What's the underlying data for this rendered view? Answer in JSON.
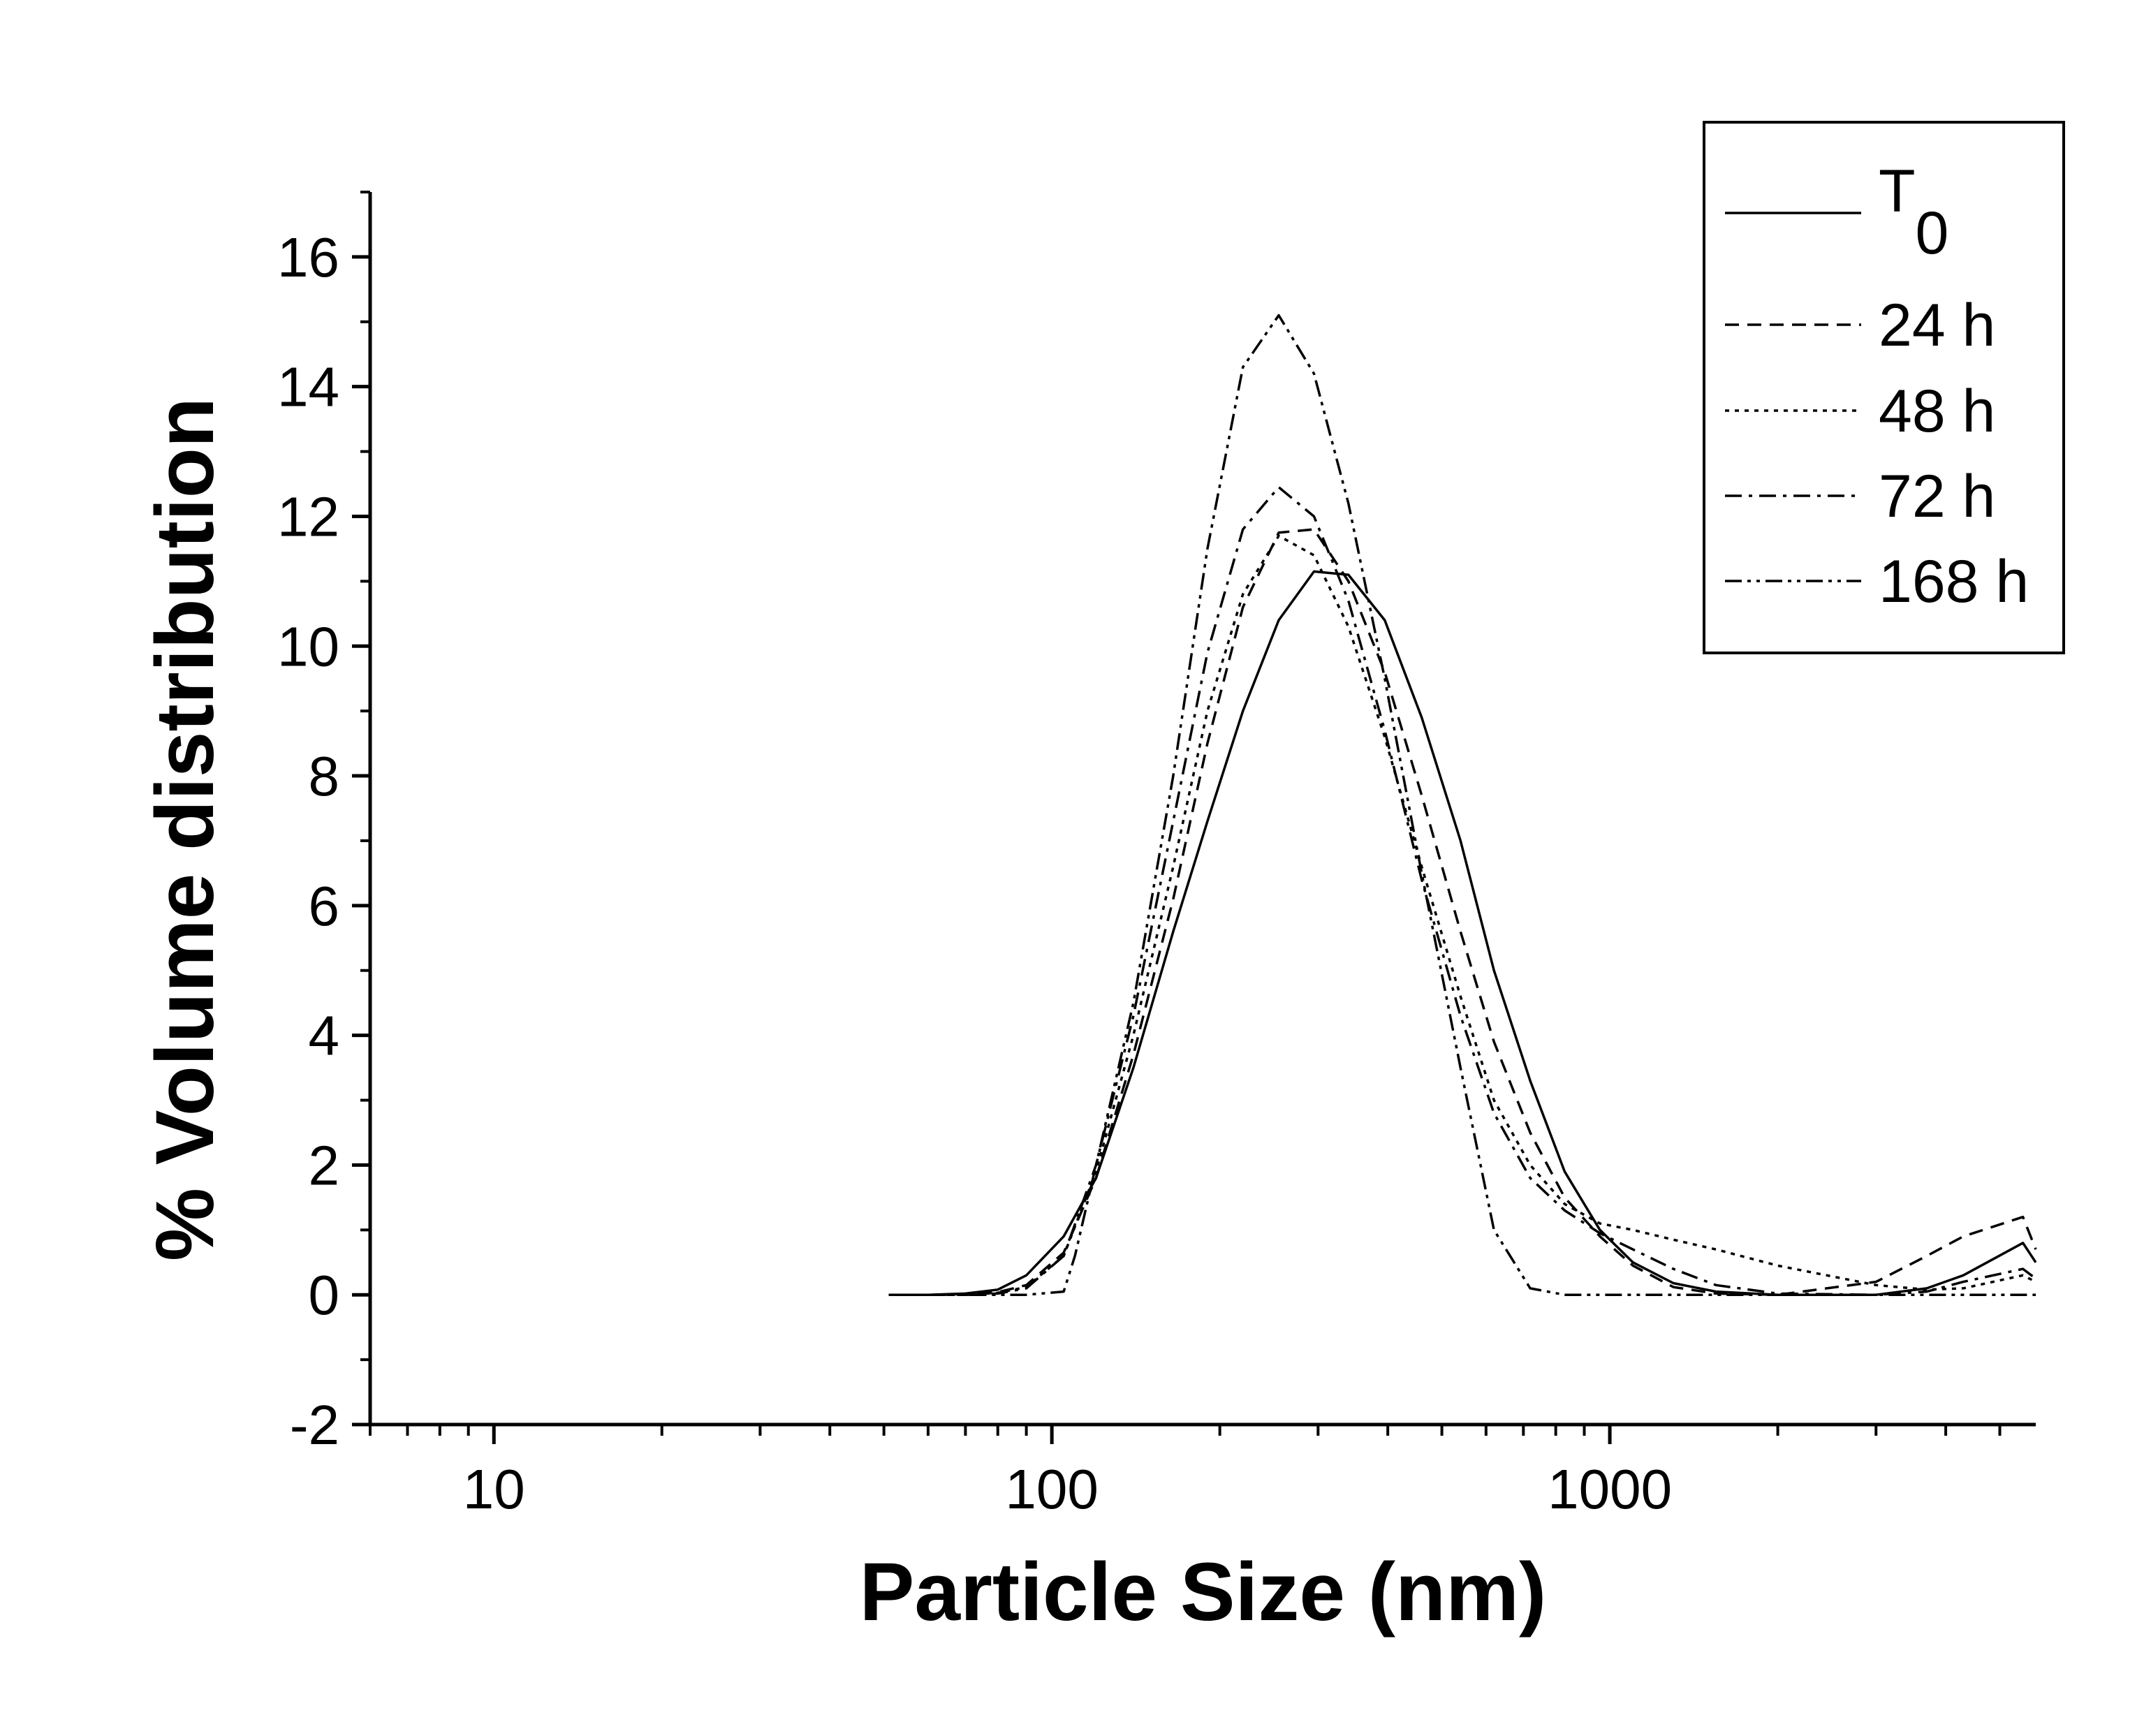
{
  "chart_data": {
    "type": "line",
    "title": "",
    "xlabel": "Particle Size (nm)",
    "ylabel": "% Volume distribution",
    "xscale": "log",
    "xlim": [
      6,
      5800
    ],
    "ylim": [
      -2,
      17
    ],
    "x_ticks": [
      10,
      100,
      1000
    ],
    "x_tick_labels": [
      "10",
      "100",
      "1000"
    ],
    "y_ticks": [
      -2,
      0,
      2,
      4,
      6,
      8,
      10,
      12,
      14,
      16
    ],
    "y_tick_labels": [
      "-2",
      "0",
      "2",
      "4",
      "6",
      "8",
      "10",
      "12",
      "14",
      "16"
    ],
    "grid": false,
    "legend_position": "top-right",
    "series": [
      {
        "name": "T",
        "name_subscript": "0",
        "dash": "solid",
        "x": [
          51,
          60,
          70,
          80,
          90,
          105,
          120,
          140,
          165,
          190,
          220,
          255,
          295,
          340,
          395,
          460,
          540,
          620,
          720,
          830,
          960,
          1100,
          1300,
          1550,
          2000,
          3000,
          3700,
          4300,
          5500,
          5800
        ],
        "y": [
          0,
          0,
          0.02,
          0.08,
          0.3,
          0.9,
          1.8,
          3.5,
          5.6,
          7.3,
          9.0,
          10.4,
          11.15,
          11.1,
          10.4,
          8.9,
          7.0,
          5.0,
          3.3,
          1.9,
          1.0,
          0.5,
          0.18,
          0.05,
          0,
          0,
          0.1,
          0.3,
          0.8,
          0.5
        ]
      },
      {
        "name": "24 h",
        "dash": "dashed",
        "x": [
          51,
          60,
          70,
          80,
          90,
          105,
          120,
          140,
          165,
          190,
          220,
          255,
          295,
          340,
          395,
          460,
          540,
          620,
          720,
          830,
          960,
          1100,
          1300,
          1550,
          2000,
          3000,
          3700,
          4300,
          5500,
          5800
        ],
        "y": [
          0,
          0,
          0.01,
          0.04,
          0.15,
          0.65,
          1.8,
          3.7,
          6.1,
          8.5,
          10.6,
          11.75,
          11.8,
          11.0,
          9.6,
          7.7,
          5.6,
          3.9,
          2.5,
          1.5,
          0.9,
          0.45,
          0.12,
          0.02,
          0,
          0.2,
          0.6,
          0.9,
          1.2,
          0.7
        ]
      },
      {
        "name": "48 h",
        "dash": "dotted",
        "x": [
          51,
          60,
          70,
          80,
          90,
          105,
          120,
          140,
          165,
          190,
          220,
          255,
          295,
          340,
          395,
          460,
          540,
          620,
          720,
          830,
          960,
          1100,
          1300,
          1550,
          2000,
          3000,
          3700,
          4300,
          5500,
          5800
        ],
        "y": [
          0,
          0,
          0,
          0.03,
          0.12,
          0.6,
          1.9,
          4.0,
          6.6,
          9.0,
          10.8,
          11.7,
          11.4,
          10.3,
          8.6,
          6.6,
          4.6,
          3.0,
          2.0,
          1.4,
          1.1,
          1.0,
          0.85,
          0.7,
          0.45,
          0.15,
          0.08,
          0.1,
          0.3,
          0.2
        ]
      },
      {
        "name": "72 h",
        "dash": "dash-dot",
        "x": [
          51,
          60,
          70,
          80,
          90,
          105,
          120,
          140,
          165,
          190,
          220,
          255,
          295,
          340,
          395,
          460,
          540,
          620,
          720,
          830,
          960,
          1100,
          1300,
          1550,
          2000,
          3000,
          3700,
          4300,
          5500,
          5800
        ],
        "y": [
          0,
          0,
          0,
          0.02,
          0.1,
          0.6,
          2.0,
          4.3,
          7.3,
          9.9,
          11.8,
          12.45,
          12.0,
          10.7,
          8.7,
          6.4,
          4.3,
          2.8,
          1.8,
          1.3,
          0.95,
          0.7,
          0.4,
          0.15,
          0.02,
          0,
          0.05,
          0.2,
          0.4,
          0.25
        ]
      },
      {
        "name": "168 h",
        "dash": "dash-dot-dot",
        "x": [
          51,
          70,
          90,
          105,
          110,
          120,
          140,
          165,
          190,
          220,
          255,
          295,
          340,
          395,
          460,
          540,
          620,
          720,
          830,
          1000,
          1500,
          2500,
          4000,
          5800
        ],
        "y": [
          0,
          0,
          0,
          0.05,
          0.6,
          2.0,
          4.5,
          8.0,
          11.5,
          14.3,
          15.1,
          14.2,
          12.2,
          9.5,
          6.5,
          3.5,
          1.0,
          0.1,
          0,
          0,
          0,
          0,
          0,
          0
        ]
      }
    ]
  }
}
